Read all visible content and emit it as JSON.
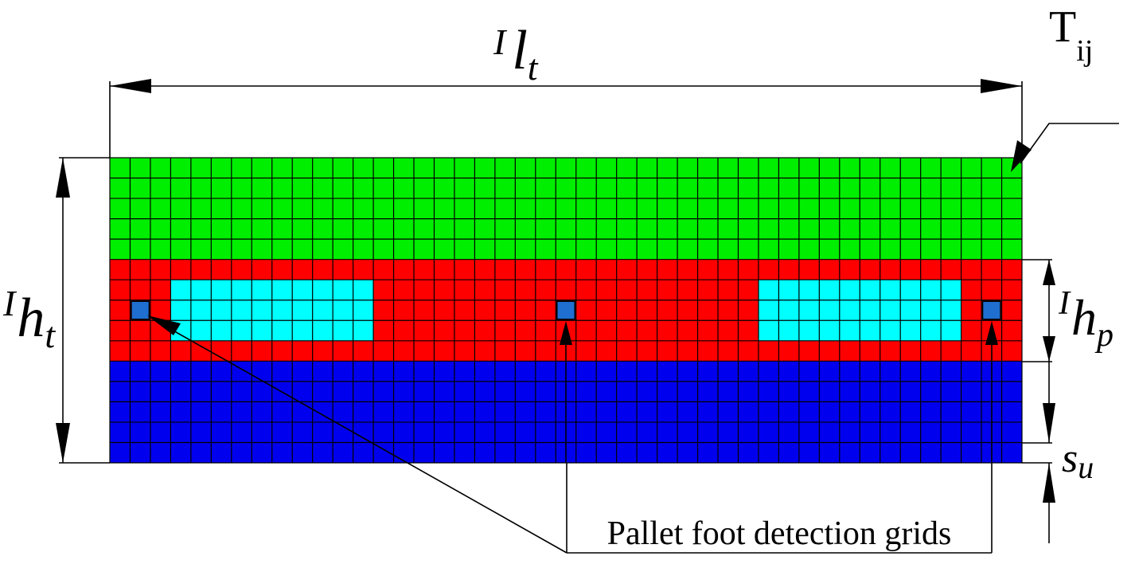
{
  "labels": {
    "tij_main": "T",
    "tij_sub": "ij",
    "lt_sup": "I",
    "lt_main": "l",
    "lt_sub": "t",
    "ht_sup": "I",
    "ht_main": "h",
    "ht_sub": "t",
    "hp_sup": "I",
    "hp_main": "h",
    "hp_sub": "p",
    "su_main": "s",
    "su_sub": "u",
    "caption": "Pallet foot detection grids"
  },
  "grid": {
    "cols": 45,
    "rows": 15,
    "bands": [
      {
        "name": "top",
        "color": "#00ee00",
        "rows": 5
      },
      {
        "name": "pallet",
        "color": "#ff0000",
        "rows": 5
      },
      {
        "name": "bottom",
        "color": "#0000ee",
        "rows": 5
      }
    ],
    "cutouts": {
      "color": "#00ffff"
    },
    "foot_cells": {
      "color": "#1f6fd0",
      "count": 3
    }
  },
  "colors": {
    "line": "#000000",
    "background": "#ffffff"
  }
}
